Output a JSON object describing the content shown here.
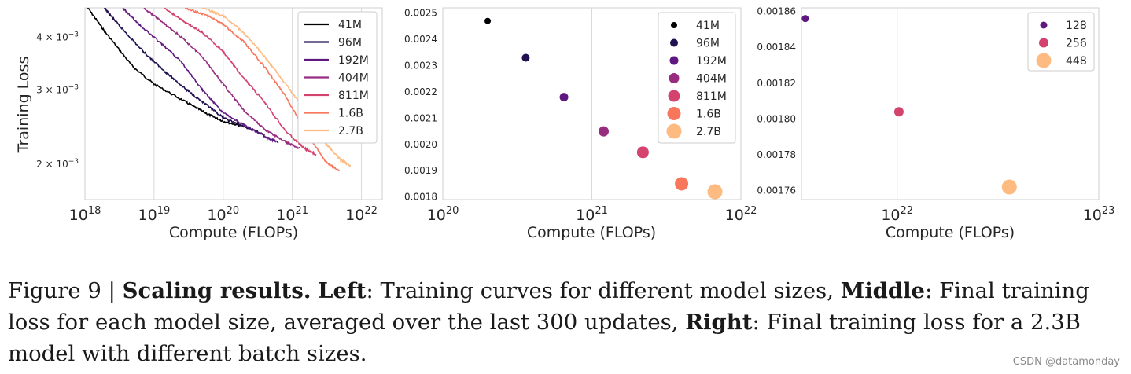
{
  "chart_data": [
    {
      "type": "line",
      "xlabel": "Compute (FLOPs)",
      "ylabel": "Training Loss",
      "xscale": "log",
      "yscale": "log",
      "xlim": [
        1e+18,
        2e+22
      ],
      "ylim": [
        0.00165,
        0.0047
      ],
      "xticks": [
        {
          "v": 1e+18,
          "label": "10^18"
        },
        {
          "v": 1e+19,
          "label": "10^19"
        },
        {
          "v": 1e+20,
          "label": "10^20"
        },
        {
          "v": 1e+21,
          "label": "10^21"
        },
        {
          "v": 1e+22,
          "label": "10^22"
        }
      ],
      "yticks": [
        {
          "v": 0.004,
          "label": "4 × 10^−3"
        },
        {
          "v": 0.003,
          "label": "3 × 10^−3"
        },
        {
          "v": 0.002,
          "label": "2 × 10^−3"
        }
      ],
      "legend_position": "top-right",
      "series": [
        {
          "name": "41M",
          "color": "#000004",
          "points": [
            [
              1.1e+18,
              0.0047
            ],
            [
              2e+18,
              0.0041
            ],
            [
              5e+18,
              0.0034
            ],
            [
              1e+19,
              0.0031
            ],
            [
              3e+19,
              0.0028
            ],
            [
              6e+19,
              0.00263
            ],
            [
              1e+20,
              0.00253
            ],
            [
              2e+20,
              0.00246
            ]
          ]
        },
        {
          "name": "96M",
          "color": "#221150",
          "points": [
            [
              1.9e+18,
              0.0047
            ],
            [
              3e+18,
              0.0043
            ],
            [
              7e+18,
              0.0037
            ],
            [
              1.5e+19,
              0.0033
            ],
            [
              3e+19,
              0.003
            ],
            [
              6e+19,
              0.00275
            ],
            [
              1e+20,
              0.00258
            ],
            [
              2e+20,
              0.00246
            ],
            [
              4e+20,
              0.00235
            ]
          ]
        },
        {
          "name": "192M",
          "color": "#5f187f",
          "points": [
            [
              3.5e+18,
              0.0047
            ],
            [
              6e+18,
              0.0043
            ],
            [
              1.2e+19,
              0.0039
            ],
            [
              2.5e+19,
              0.0035
            ],
            [
              5e+19,
              0.003
            ],
            [
              1e+20,
              0.00265
            ],
            [
              2e+20,
              0.00248
            ],
            [
              4e+20,
              0.00233
            ],
            [
              6.3e+20,
              0.00225
            ]
          ]
        },
        {
          "name": "404M",
          "color": "#982d80",
          "points": [
            [
              7e+18,
              0.0047
            ],
            [
              1.2e+19,
              0.0044
            ],
            [
              2.5e+19,
              0.004
            ],
            [
              5e+19,
              0.0036
            ],
            [
              1e+20,
              0.0031
            ],
            [
              2e+20,
              0.00268
            ],
            [
              4e+20,
              0.00242
            ],
            [
              8e+20,
              0.00226
            ],
            [
              1.3e+21,
              0.00218
            ]
          ]
        },
        {
          "name": "811M",
          "color": "#d3436e",
          "points": [
            [
              1.4e+19,
              0.0047
            ],
            [
              2.5e+19,
              0.0044
            ],
            [
              5e+19,
              0.0041
            ],
            [
              1e+20,
              0.0037
            ],
            [
              2e+20,
              0.0032
            ],
            [
              4e+20,
              0.0028
            ],
            [
              8e+20,
              0.0024
            ],
            [
              1.5e+21,
              0.00218
            ],
            [
              2.2e+21,
              0.00211
            ]
          ]
        },
        {
          "name": "1.6B",
          "color": "#f8765c",
          "points": [
            [
              2.8e+19,
              0.0047
            ],
            [
              6e+19,
              0.0045
            ],
            [
              1e+20,
              0.0043
            ],
            [
              2e+20,
              0.0039
            ],
            [
              4e+20,
              0.0034
            ],
            [
              8e+20,
              0.0029
            ],
            [
              1.5e+21,
              0.00242
            ],
            [
              3e+21,
              0.00203
            ],
            [
              4.8e+21,
              0.00193
            ]
          ]
        },
        {
          "name": "2.7B",
          "color": "#febb81",
          "points": [
            [
              5e+19,
              0.0047
            ],
            [
              1e+20,
              0.0045
            ],
            [
              2e+20,
              0.0041
            ],
            [
              4e+20,
              0.0036
            ],
            [
              8e+20,
              0.0031
            ],
            [
              1.5e+21,
              0.0027
            ],
            [
              3e+21,
              0.00225
            ],
            [
              5e+21,
              0.00205
            ],
            [
              7e+21,
              0.00198
            ]
          ]
        }
      ]
    },
    {
      "type": "scatter",
      "xlabel": "Compute (FLOPs)",
      "xscale": "log",
      "xlim": [
        1e+20,
        1e+22
      ],
      "ylim": [
        0.00179,
        0.00252
      ],
      "xticks": [
        {
          "v": 1e+20,
          "label": "10^20"
        },
        {
          "v": 1e+21,
          "label": "10^21"
        },
        {
          "v": 1e+22,
          "label": "10^22"
        }
      ],
      "yticks": [
        0.0018,
        0.0019,
        0.002,
        0.0021,
        0.0022,
        0.0023,
        0.0024,
        0.0025
      ],
      "ytick_labels": [
        "0.0018",
        "0.0019",
        "0.0020",
        "0.0021",
        "0.0022",
        "0.0023",
        "0.0024",
        "0.0025"
      ],
      "legend_position": "top-right",
      "points": [
        {
          "name": "41M",
          "x": 2e+20,
          "y": 0.00247,
          "color": "#000004",
          "size": 4
        },
        {
          "name": "96M",
          "x": 3.6e+20,
          "y": 0.00233,
          "color": "#221150",
          "size": 5
        },
        {
          "name": "192M",
          "x": 6.5e+20,
          "y": 0.00218,
          "color": "#5f187f",
          "size": 5.5
        },
        {
          "name": "404M",
          "x": 1.2e+21,
          "y": 0.00205,
          "color": "#982d80",
          "size": 6.5
        },
        {
          "name": "811M",
          "x": 2.2e+21,
          "y": 0.00197,
          "color": "#d3436e",
          "size": 7.5
        },
        {
          "name": "1.6B",
          "x": 4e+21,
          "y": 0.00185,
          "color": "#f8765c",
          "size": 8.5
        },
        {
          "name": "2.7B",
          "x": 6.7e+21,
          "y": 0.00182,
          "color": "#febb81",
          "size": 9.5
        }
      ]
    },
    {
      "type": "scatter",
      "xlabel": "Compute (FLOPs)",
      "xscale": "log",
      "xlim": [
        3.35e+21,
        1e+23
      ],
      "ylim": [
        0.001755,
        0.001862
      ],
      "xticks": [
        {
          "v": 1e+22,
          "label": "10^22"
        },
        {
          "v": 1e+23,
          "label": "10^23"
        }
      ],
      "yticks": [
        0.00176,
        0.00178,
        0.0018,
        0.00182,
        0.00184,
        0.00186
      ],
      "ytick_labels": [
        "0.00176",
        "0.00178",
        "0.00180",
        "0.00182",
        "0.00184",
        "0.00186"
      ],
      "legend_position": "top-right",
      "points": [
        {
          "name": "128",
          "x": 3.5e+21,
          "y": 0.001856,
          "color": "#5f187f",
          "size": 4.5
        },
        {
          "name": "256",
          "x": 1.02e+22,
          "y": 0.001804,
          "color": "#d3436e",
          "size": 6
        },
        {
          "name": "448",
          "x": 3.6e+22,
          "y": 0.001762,
          "color": "#febb81",
          "size": 9.5
        }
      ]
    }
  ],
  "caption": {
    "figure_label": "Figure 9 | ",
    "bold_title": "Scaling results.",
    "left_label": "Left",
    "left_text": ": Training curves for different model sizes, ",
    "middle_label": "Middle",
    "middle_text": ": Final training loss for each model size, averaged over the last 300 updates, ",
    "right_label": "Right",
    "right_text": ": Final training loss for a 2.3B model with different batch sizes."
  },
  "watermark": "CSDN @datamonday"
}
